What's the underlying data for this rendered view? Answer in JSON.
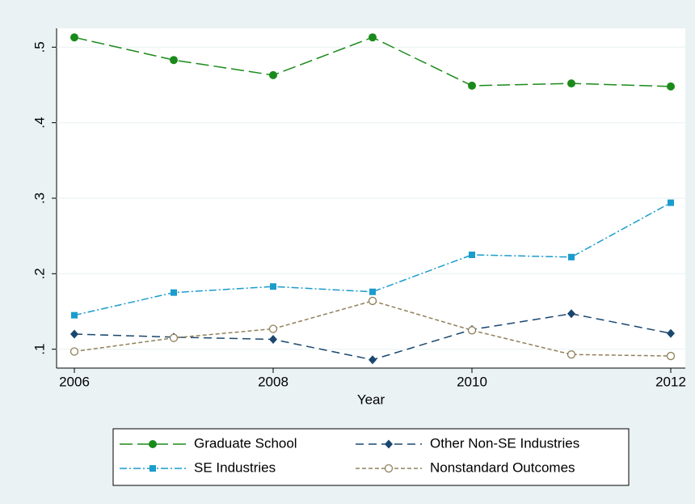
{
  "chart_data": {
    "type": "line",
    "x_label": "Year",
    "x": [
      2006,
      2007,
      2008,
      2009,
      2010,
      2011,
      2012
    ],
    "xlim": [
      2006,
      2012
    ],
    "xticks": [
      2006,
      2008,
      2010,
      2012
    ],
    "ylim": [
      0.075,
      0.525
    ],
    "yticks": [
      {
        "value": 0.1,
        "label": ".1"
      },
      {
        "value": 0.2,
        "label": ".2"
      },
      {
        "value": 0.3,
        "label": ".3"
      },
      {
        "value": 0.4,
        "label": ".4"
      },
      {
        "value": 0.5,
        "label": ".5"
      }
    ],
    "grid": true,
    "series": [
      {
        "name": "Graduate School",
        "color": "#1a8a1a",
        "marker": "circle",
        "dash": "long-dash",
        "values": [
          0.513,
          0.483,
          0.463,
          0.513,
          0.449,
          0.452,
          0.448
        ]
      },
      {
        "name": "Other Non-SE Industries",
        "color": "#1a476f",
        "marker": "diamond",
        "dash": "dash",
        "values": [
          0.12,
          0.116,
          0.113,
          0.086,
          0.126,
          0.147,
          0.121
        ]
      },
      {
        "name": "SE Industries",
        "color": "#1a9ccc",
        "marker": "square",
        "dash": "dash-dot",
        "values": [
          0.145,
          0.175,
          0.183,
          0.176,
          0.225,
          0.222,
          0.294
        ]
      },
      {
        "name": "Nonstandard Outcomes",
        "color": "#90805a",
        "marker": "hollow-circle",
        "dash": "short-dash",
        "values": [
          0.097,
          0.115,
          0.127,
          0.164,
          0.125,
          0.093,
          0.091
        ]
      }
    ]
  }
}
